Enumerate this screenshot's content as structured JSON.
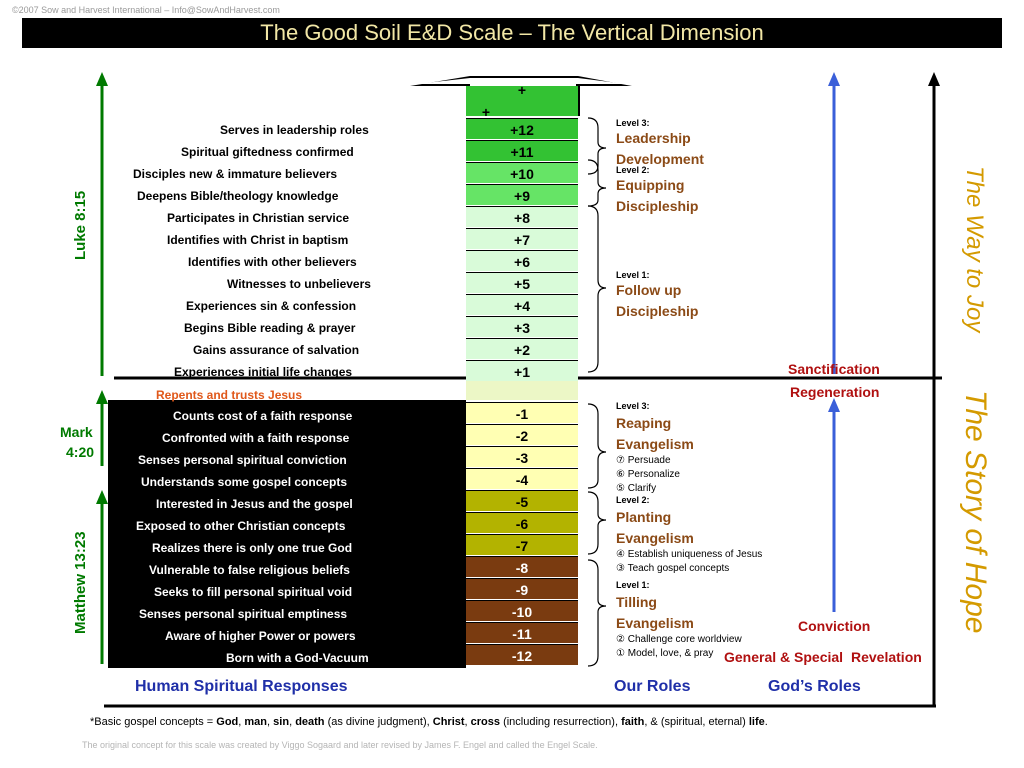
{
  "copyright": "©2007 Sow and Harvest International – Info@SowAndHarvest.com",
  "title": "The Good Soil E&D Scale – The Vertical Dimension",
  "scale_top": [
    "+",
    "+"
  ],
  "responses_up": [
    "Serves in leadership roles",
    "Spiritual giftedness confirmed",
    "Disciples new & immature believers",
    "Deepens Bible/theology knowledge",
    "Participates in Christian service",
    "Identifies with Christ in baptism",
    "Identifies with other believers",
    "Witnesses to unbelievers",
    "Experiences sin & confession",
    "Begins Bible reading & prayer",
    "Gains assurance of salvation",
    "Experiences initial life changes"
  ],
  "repents": "Repents and trusts Jesus",
  "responses_down": [
    "Counts cost of a faith response",
    "Confronted with a faith response",
    "Senses personal spiritual conviction",
    "Understands some gospel concepts",
    "Interested in Jesus and the gospel",
    "Exposed to other Christian concepts",
    "Realizes there is only one true God",
    "Vulnerable to false religious beliefs",
    "Seeks to fill personal spiritual void",
    "Senses personal spiritual emptiness",
    "Aware of higher Power or powers",
    "Born with a God-Vacuum"
  ],
  "scale_up": [
    "+12",
    "+11",
    "+10",
    "+9",
    "+8",
    "+7",
    "+6",
    "+5",
    "+4",
    "+3",
    "+2",
    "+1"
  ],
  "scale_down": [
    "-1",
    "-2",
    "-3",
    "-4",
    "-5",
    "-6",
    "-7",
    "-8",
    "-9",
    "-10",
    "-11",
    "-12"
  ],
  "colors": {
    "dark_green": "#33c233",
    "mid_green": "#66e466",
    "light_green": "#d9fbd9",
    "pale_band": "#ecf7c6",
    "light_yellow": "#ffffb3",
    "olive": "#b3b300",
    "brown": "#7a3b10",
    "vertical_green": "#007a00",
    "vertical_orange": "#d49a00",
    "god_blue": "#3a5fd9"
  },
  "roles_up": [
    {
      "level": "Level 3:",
      "name1": "Leadership",
      "name2": "Development"
    },
    {
      "level": "Level 2:",
      "name1": "Equipping",
      "name2": "Discipleship"
    },
    {
      "level": "Level 1:",
      "name1": "Follow up",
      "name2": "Discipleship"
    }
  ],
  "roles_down": [
    {
      "level": "Level 3:",
      "name1": "Reaping",
      "name2": "Evangelism",
      "items": [
        "⑦   Persuade",
        "⑥   Personalize",
        "⑤   Clarify"
      ]
    },
    {
      "level": "Level 2:",
      "name1": "Planting",
      "name2": "Evangelism",
      "items": [
        "④  Establish uniqueness of Jesus",
        "③  Teach gospel concepts"
      ]
    },
    {
      "level": "Level 1:",
      "name1": "Tilling",
      "name2": "Evangelism",
      "items": [
        "②   Challenge core worldview",
        "① Model, love, & pray"
      ]
    }
  ],
  "gods_roles": {
    "sanctification": "Sanctification",
    "regeneration": "Regeneration",
    "conviction": "Conviction",
    "general_special": "General & Special",
    "revelation": "Revelation"
  },
  "left_verses": {
    "luke": "Luke 8:15",
    "mark1": "Mark",
    "mark2": "4:20",
    "matthew": "Matthew 13:23"
  },
  "right_vertical": {
    "way": "The Way to Joy",
    "story": "The Story of Hope"
  },
  "bottom_labels": {
    "human": "Human Spiritual Responses",
    "our": "Our Roles",
    "god": "God’s Roles"
  },
  "footnote": {
    "prefix": "*Basic gospel concepts = ",
    "god": "God",
    "sep1": ", ",
    "man": "man",
    "sep2": ", ",
    "sin": "sin",
    "sep3": ", ",
    "death": "death",
    "death_note": " (as divine judgment), ",
    "christ": "Christ",
    "sep4": ", ",
    "cross": "cross",
    "cross_note": " (including resurrection), ",
    "faith": "faith",
    "faith_note": ", & (spiritual, eternal) ",
    "life": "life",
    "end": "."
  },
  "origin_note": "The original concept for this scale was created by Viggo Sogaard and later revised by James F. Engel and called the Engel Scale."
}
